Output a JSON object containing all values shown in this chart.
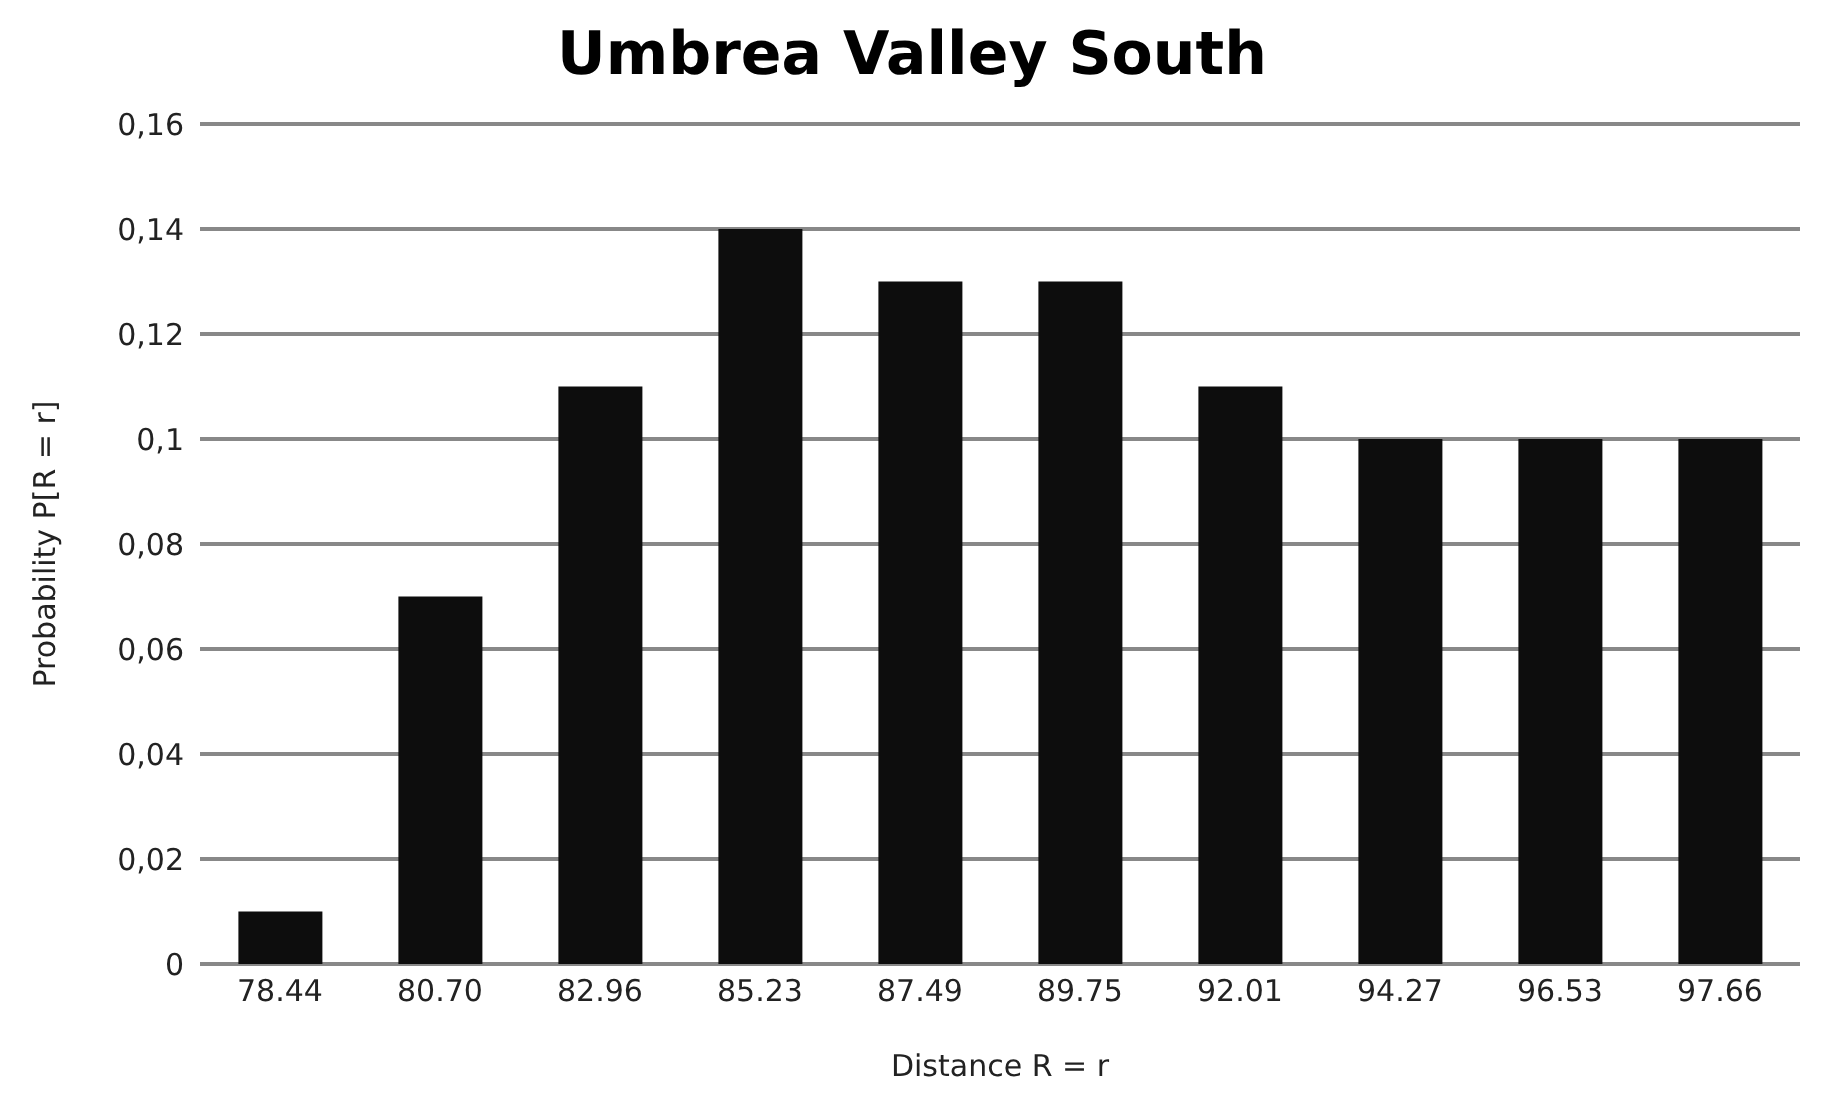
{
  "chart_data": {
    "type": "bar",
    "title": "Umbrea Valley South",
    "xlabel": "Distance R = r",
    "ylabel": "Probability P[R = r]",
    "categories": [
      "78.44",
      "80.70",
      "82.96",
      "85.23",
      "87.49",
      "89.75",
      "92.01",
      "94.27",
      "96.53",
      "97.66"
    ],
    "values": [
      0.01,
      0.07,
      0.11,
      0.14,
      0.13,
      0.13,
      0.11,
      0.1,
      0.1,
      0.1
    ],
    "color": "#0d0d0d",
    "ylim": [
      0,
      0.16
    ],
    "yticks": [
      0,
      {
        "value": 0.02,
        "label": "0,02"
      },
      {
        "value": 0.04,
        "label": "0,04"
      },
      {
        "value": 0.06,
        "label": "0,06"
      },
      {
        "value": 0.08,
        "label": "0,08"
      },
      {
        "value": 0.1,
        "label": "0,1"
      },
      {
        "value": 0.12,
        "label": "0,12"
      },
      {
        "value": 0.14,
        "label": "0,14"
      },
      {
        "value": 0.16,
        "label": "0,16"
      }
    ],
    "grid": "y"
  }
}
